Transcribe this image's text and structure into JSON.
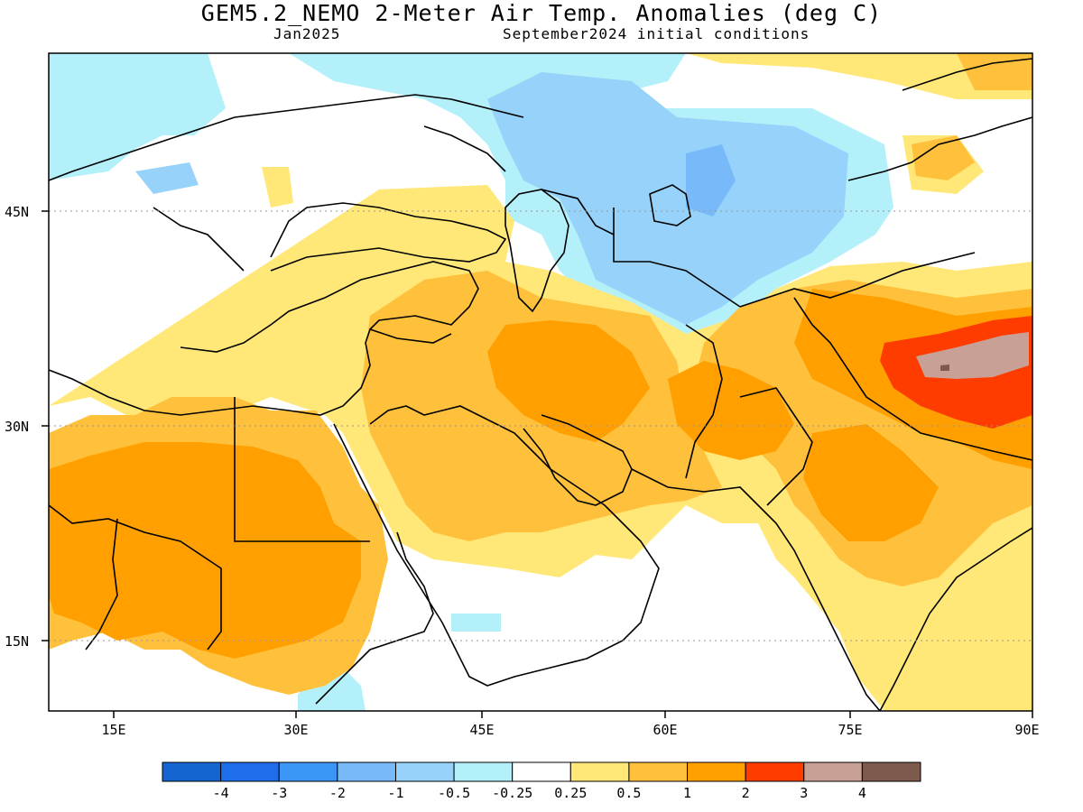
{
  "title": "GEM5.2_NEMO 2-Meter Air Temp. Anomalies (deg C)",
  "subtitle_left": "Jan2025",
  "subtitle_right": "September2024 initial conditions",
  "lat_labels": [
    "45N",
    "30N",
    "15N"
  ],
  "lon_labels": [
    "15E",
    "30E",
    "45E",
    "60E",
    "75E",
    "90E"
  ],
  "legend": {
    "colors": [
      "#1464d2",
      "#1e6eeb",
      "#3c96f5",
      "#78b9fa",
      "#96d2fa",
      "#b4f0fa",
      "#ffffff",
      "#ffe878",
      "#ffc03c",
      "#ffa000",
      "#ff3c00",
      "#c8a096",
      "#7d5a4b"
    ],
    "labels": [
      "-4",
      "-3",
      "-2",
      "-1",
      "-0.5",
      "-0.25",
      "0.25",
      "0.5",
      "1",
      "2",
      "3",
      "4"
    ]
  },
  "colors": {
    "light_cyan": "#b4f0fa",
    "light_blue": "#96d2fa",
    "blue": "#78b9fa",
    "pale_yellow": "#ffe878",
    "light_orange": "#ffc03c",
    "orange": "#ffa000",
    "red": "#ff3c00",
    "rose_brown": "#c8a096",
    "dark_brown": "#7d5a4b"
  }
}
